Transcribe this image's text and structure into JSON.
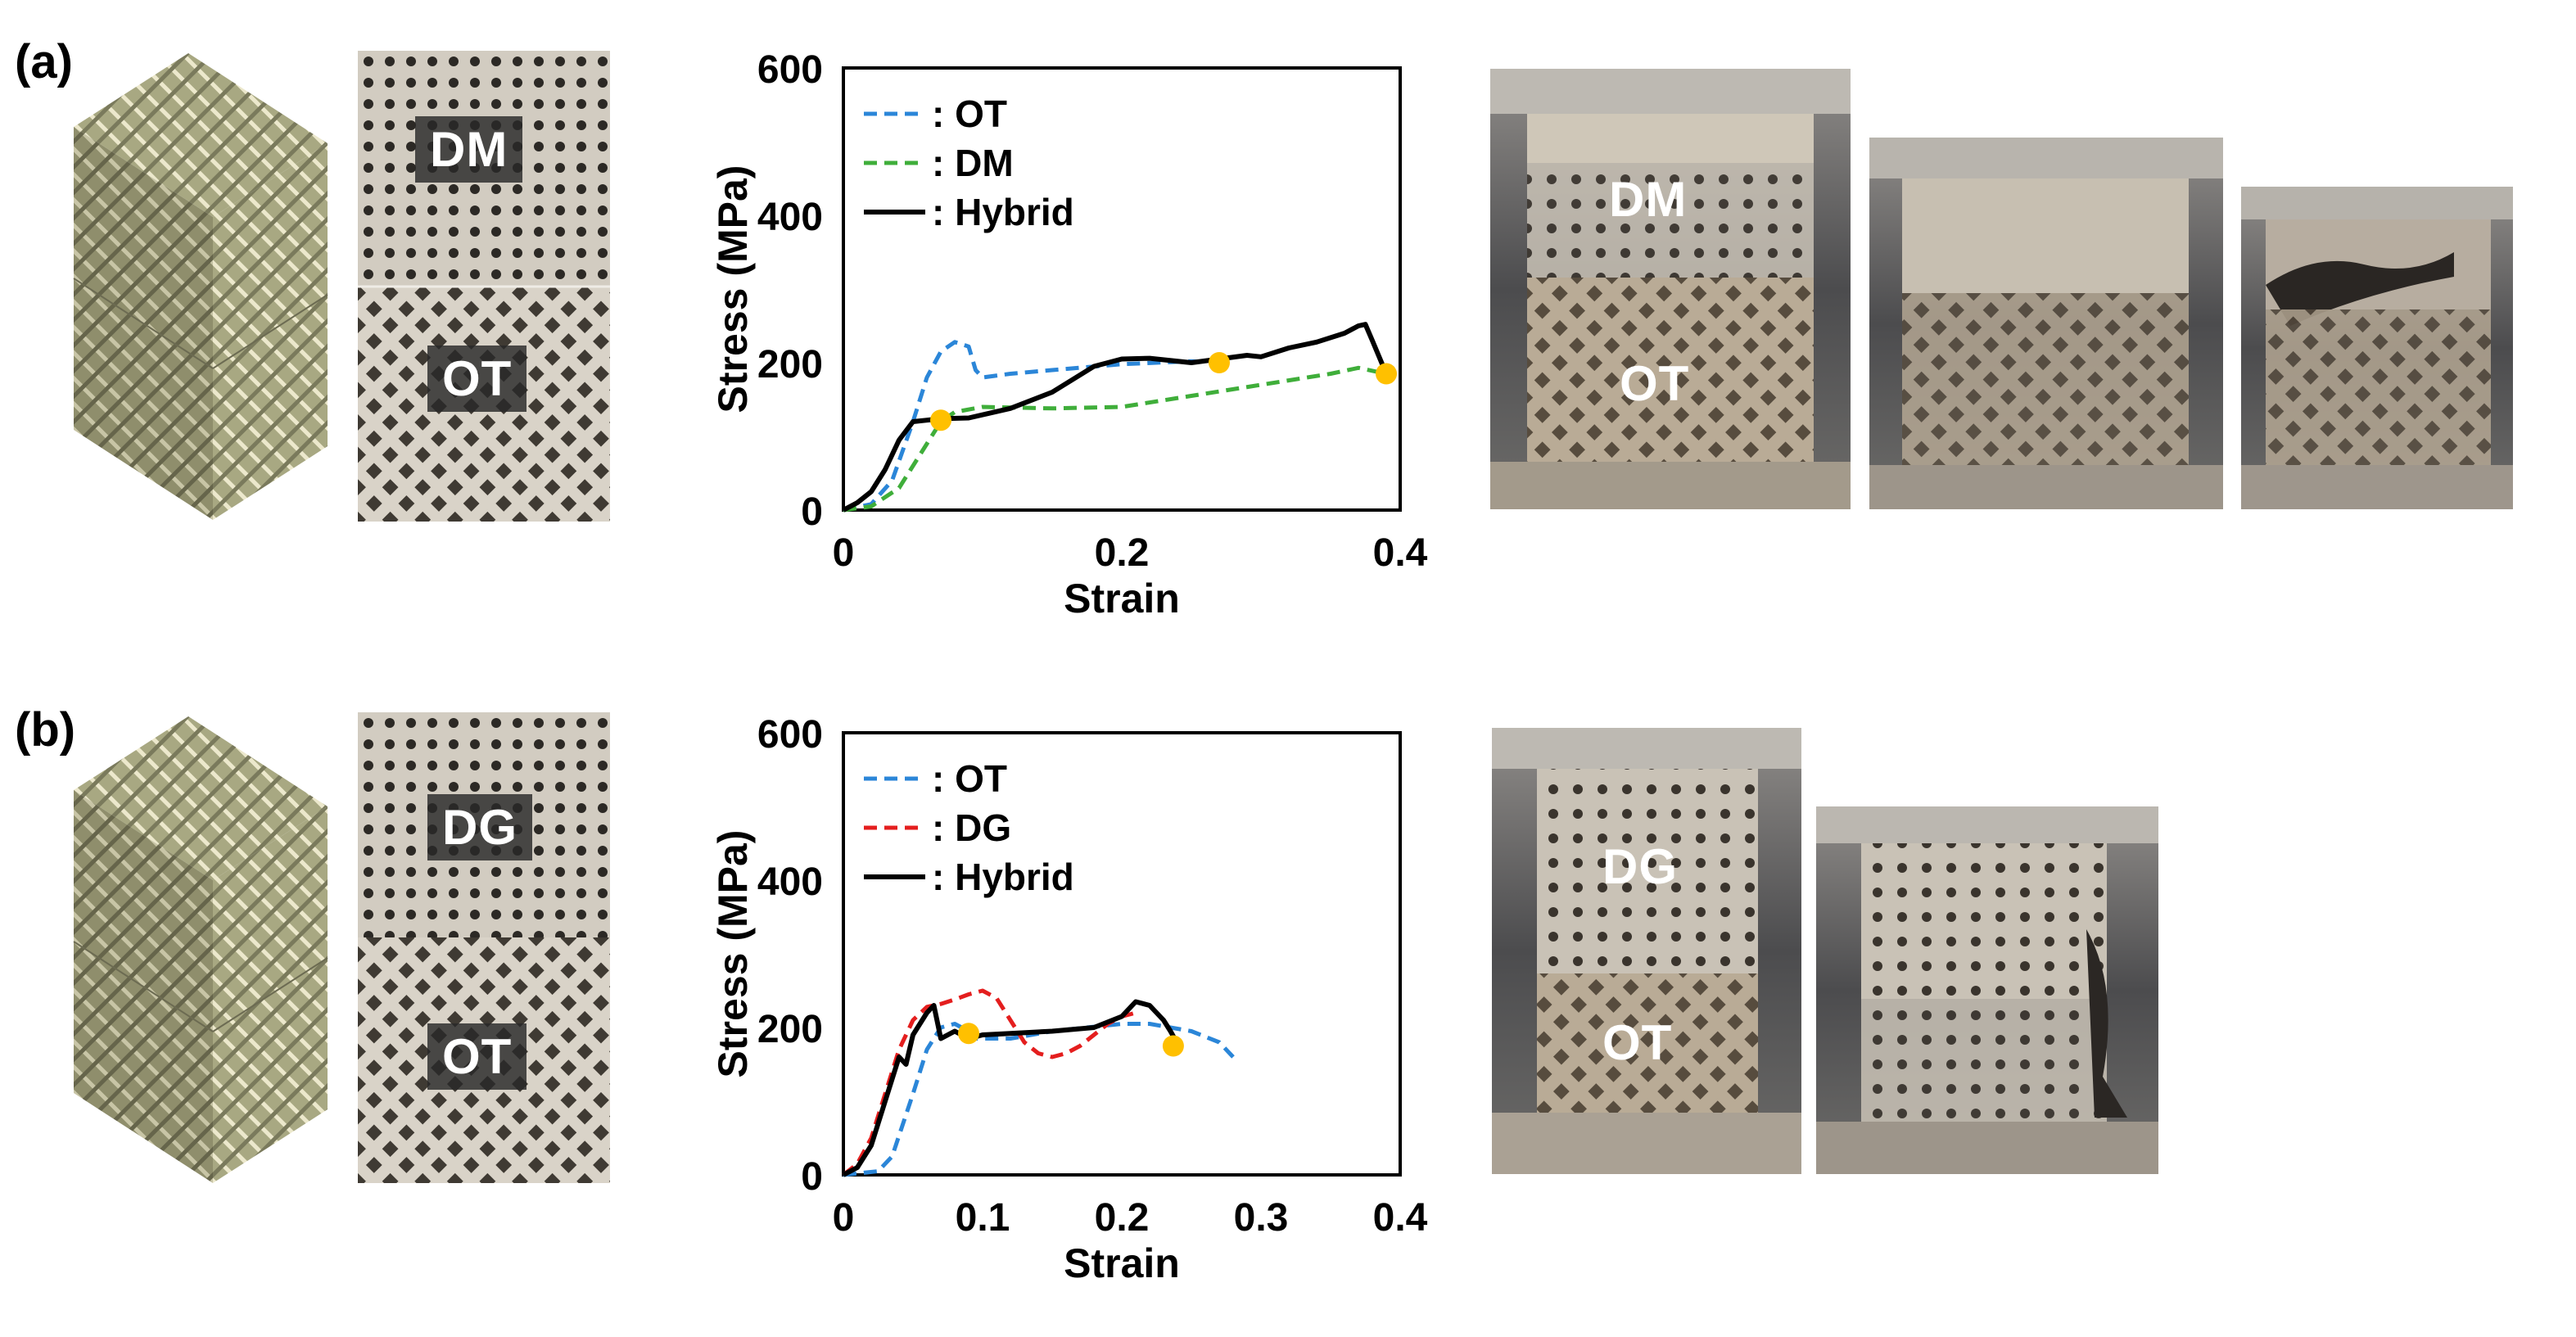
{
  "panels": {
    "a": {
      "label": "(a)",
      "specimen_top": "DM",
      "specimen_bottom": "OT",
      "photo_top": "DM",
      "photo_bottom": "OT"
    },
    "b": {
      "label": "(b)",
      "specimen_top": "DG",
      "specimen_bottom": "OT",
      "photo_top": "DG",
      "photo_bottom": "OT"
    }
  },
  "colors": {
    "ot": "#2b86d8",
    "dm": "#3fae3a",
    "dg": "#e41e1e",
    "hybrid": "#000000",
    "marker": "#ffc000",
    "lattice": "#a9a884"
  },
  "chart_data": [
    {
      "type": "line",
      "panel": "a",
      "xlabel": "Strain",
      "ylabel": "Stress (MPa)",
      "xlim": [
        0,
        0.4
      ],
      "ylim": [
        0,
        600
      ],
      "xticks": [
        "0",
        "0.2",
        "0.4"
      ],
      "yticks": [
        "0",
        "200",
        "400",
        "600"
      ],
      "legend": [
        "OT",
        "DM",
        "Hybrid"
      ],
      "legend_prefix": ":",
      "series": [
        {
          "name": "OT",
          "style": "dashed",
          "colorKey": "ot",
          "x": [
            0,
            0.02,
            0.035,
            0.05,
            0.06,
            0.07,
            0.08,
            0.09,
            0.095,
            0.1,
            0.12,
            0.15,
            0.2,
            0.25,
            0.27
          ],
          "y": [
            0,
            8,
            40,
            120,
            180,
            215,
            228,
            222,
            190,
            180,
            185,
            190,
            198,
            202,
            200
          ]
        },
        {
          "name": "DM",
          "style": "dashed",
          "colorKey": "dm",
          "x": [
            0,
            0.02,
            0.04,
            0.06,
            0.07,
            0.08,
            0.1,
            0.15,
            0.2,
            0.25,
            0.3,
            0.35,
            0.37,
            0.39
          ],
          "y": [
            0,
            5,
            30,
            90,
            120,
            133,
            140,
            138,
            140,
            155,
            170,
            185,
            193,
            185
          ]
        },
        {
          "name": "Hybrid",
          "style": "solid",
          "colorKey": "hybrid",
          "x": [
            0,
            0.01,
            0.02,
            0.03,
            0.04,
            0.05,
            0.06,
            0.07,
            0.09,
            0.12,
            0.15,
            0.18,
            0.2,
            0.22,
            0.25,
            0.27,
            0.29,
            0.3,
            0.32,
            0.34,
            0.36,
            0.37,
            0.375,
            0.38,
            0.39
          ],
          "y": [
            0,
            10,
            25,
            55,
            95,
            120,
            122,
            124,
            125,
            138,
            160,
            195,
            205,
            206,
            200,
            205,
            210,
            208,
            220,
            228,
            240,
            250,
            252,
            230,
            185
          ]
        }
      ],
      "markers": [
        {
          "x": 0.07,
          "y": 122
        },
        {
          "x": 0.27,
          "y": 200
        },
        {
          "x": 0.39,
          "y": 185
        }
      ]
    },
    {
      "type": "line",
      "panel": "b",
      "xlabel": "Strain",
      "ylabel": "Stress (MPa)",
      "xlim": [
        0,
        0.4
      ],
      "ylim": [
        0,
        600
      ],
      "xticks": [
        "0",
        "0.1",
        "0.2",
        "0.3",
        "0.4"
      ],
      "yticks": [
        "0",
        "200",
        "400",
        "600"
      ],
      "legend": [
        "OT",
        "DG",
        "Hybrid"
      ],
      "legend_prefix": ":",
      "series": [
        {
          "name": "OT",
          "style": "dashed",
          "colorKey": "ot",
          "x": [
            0,
            0.025,
            0.035,
            0.05,
            0.06,
            0.07,
            0.08,
            0.085,
            0.09,
            0.12,
            0.15,
            0.2,
            0.22,
            0.25,
            0.27,
            0.28
          ],
          "y": [
            0,
            5,
            25,
            110,
            170,
            200,
            205,
            200,
            185,
            185,
            195,
            205,
            205,
            195,
            180,
            160
          ]
        },
        {
          "name": "DG",
          "style": "dashed",
          "colorKey": "dg",
          "x": [
            0,
            0.01,
            0.02,
            0.03,
            0.04,
            0.05,
            0.06,
            0.07,
            0.08,
            0.09,
            0.1,
            0.11,
            0.12,
            0.13,
            0.14,
            0.15,
            0.16,
            0.17,
            0.18,
            0.19,
            0.2,
            0.21
          ],
          "y": [
            0,
            15,
            50,
            110,
            170,
            210,
            228,
            232,
            238,
            245,
            250,
            240,
            210,
            180,
            165,
            160,
            165,
            175,
            190,
            205,
            215,
            220
          ]
        },
        {
          "name": "Hybrid",
          "style": "solid",
          "colorKey": "hybrid",
          "x": [
            0,
            0.01,
            0.02,
            0.03,
            0.04,
            0.045,
            0.05,
            0.06,
            0.065,
            0.07,
            0.08,
            0.09,
            0.1,
            0.12,
            0.15,
            0.18,
            0.2,
            0.21,
            0.22,
            0.23,
            0.235,
            0.24
          ],
          "y": [
            0,
            10,
            40,
            100,
            160,
            150,
            190,
            220,
            230,
            185,
            195,
            185,
            190,
            192,
            195,
            200,
            215,
            235,
            230,
            210,
            195,
            178
          ]
        }
      ],
      "markers": [
        {
          "x": 0.09,
          "y": 192
        },
        {
          "x": 0.237,
          "y": 175
        }
      ]
    }
  ]
}
